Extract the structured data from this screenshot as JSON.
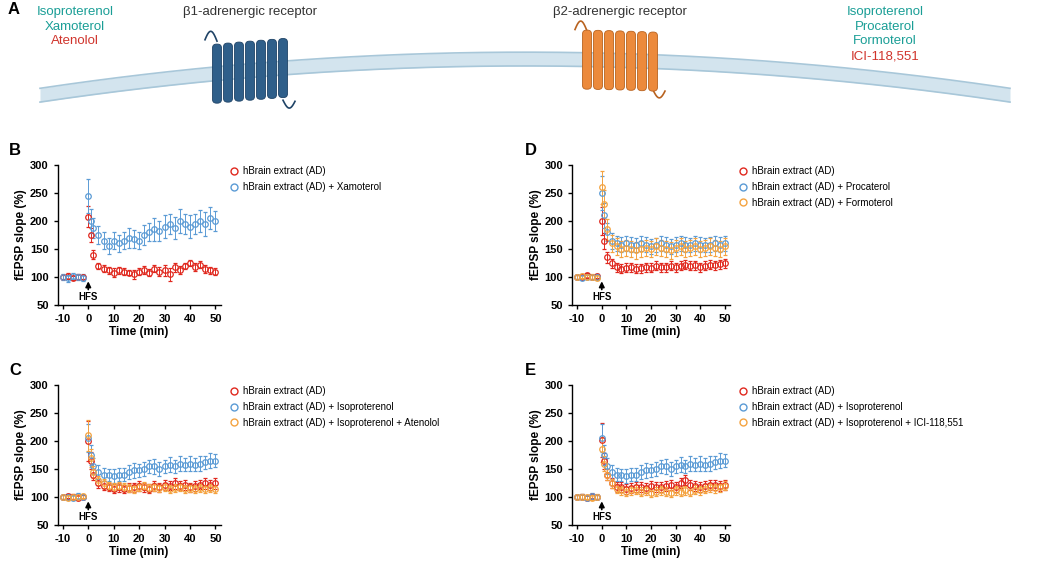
{
  "diagram": {
    "label": "A",
    "receptors": [
      {
        "name": "β1-adrenergic receptor",
        "agonists": [
          "Isoproterenol",
          "Xamoterol"
        ],
        "antagonists": [
          "Atenolol"
        ]
      },
      {
        "name": "β2-adrenergic receptor",
        "agonists": [
          "Isoproterenol",
          "Procaterol",
          "Formoterol"
        ],
        "antagonists": [
          "ICI-118,551"
        ]
      }
    ]
  },
  "chart_data": [
    {
      "type": "scatter",
      "title": "B",
      "xlabel": "Time (min)",
      "ylabel": "fEPSP slope (%)",
      "x": [
        -10,
        -8,
        -6,
        -4,
        -2,
        0,
        1,
        2,
        4,
        6,
        8,
        10,
        12,
        14,
        16,
        18,
        20,
        22,
        24,
        26,
        28,
        30,
        32,
        34,
        36,
        38,
        40,
        42,
        44,
        46,
        48,
        50
      ],
      "xlim": [
        -12,
        52
      ],
      "xticks": [
        -10,
        0,
        10,
        20,
        30,
        40,
        50
      ],
      "ylim": [
        50,
        300
      ],
      "yticks": [
        50,
        100,
        150,
        200,
        250,
        300
      ],
      "grid": false,
      "legend": "upper left",
      "annotations": [
        {
          "text": "HFS",
          "x": 0
        }
      ],
      "series": [
        {
          "name": "hBrain extract (AD)",
          "color": "#e0281e",
          "marker": "circle",
          "line_style": "none",
          "values": [
            100,
            102,
            98,
            101,
            100,
            208,
            175,
            140,
            120,
            115,
            112,
            108,
            112,
            110,
            108,
            105,
            110,
            112,
            108,
            115,
            110,
            112,
            105,
            118,
            112,
            120,
            125,
            118,
            122,
            115,
            112,
            110
          ],
          "errors": [
            4,
            5,
            4,
            5,
            4,
            18,
            12,
            8,
            6,
            6,
            6,
            8,
            6,
            6,
            5,
            8,
            6,
            7,
            6,
            6,
            8,
            10,
            12,
            8,
            7,
            6,
            6,
            7,
            6,
            7,
            6,
            6
          ]
        },
        {
          "name": "hBrain extract (AD) + Xamoterol",
          "color": "#5b9bd5",
          "marker": "circle",
          "line_style": "none",
          "values": [
            100,
            98,
            102,
            100,
            99,
            245,
            200,
            188,
            175,
            165,
            155,
            165,
            160,
            165,
            170,
            168,
            165,
            175,
            180,
            185,
            182,
            190,
            195,
            188,
            200,
            195,
            190,
            195,
            200,
            195,
            205,
            200
          ],
          "errors": [
            5,
            6,
            5,
            5,
            6,
            30,
            22,
            18,
            16,
            15,
            14,
            15,
            16,
            15,
            18,
            16,
            15,
            18,
            16,
            20,
            18,
            20,
            18,
            20,
            22,
            18,
            20,
            18,
            20,
            22,
            20,
            18
          ]
        }
      ]
    },
    {
      "type": "scatter",
      "title": "C",
      "xlabel": "Time (min)",
      "ylabel": "fEPSP slope (%)",
      "x": [
        -10,
        -8,
        -6,
        -4,
        -2,
        0,
        1,
        2,
        4,
        6,
        8,
        10,
        12,
        14,
        16,
        18,
        20,
        22,
        24,
        26,
        28,
        30,
        32,
        34,
        36,
        38,
        40,
        42,
        44,
        46,
        48,
        50
      ],
      "xlim": [
        -12,
        52
      ],
      "xticks": [
        -10,
        0,
        10,
        20,
        30,
        40,
        50
      ],
      "ylim": [
        50,
        300
      ],
      "yticks": [
        50,
        100,
        150,
        200,
        250,
        300
      ],
      "grid": false,
      "legend": "upper left",
      "annotations": [
        {
          "text": "HFS",
          "x": 0
        }
      ],
      "series": [
        {
          "name": "hBrain extract (AD)",
          "color": "#e0281e",
          "marker": "circle",
          "line_style": "none",
          "values": [
            100,
            102,
            101,
            99,
            100,
            200,
            165,
            140,
            125,
            120,
            118,
            115,
            118,
            115,
            117,
            118,
            120,
            118,
            115,
            120,
            118,
            122,
            120,
            125,
            120,
            122,
            118,
            120,
            122,
            125,
            122,
            125
          ],
          "errors": [
            4,
            4,
            5,
            4,
            4,
            35,
            15,
            10,
            8,
            8,
            7,
            8,
            8,
            7,
            8,
            8,
            9,
            8,
            8,
            9,
            8,
            9,
            8,
            10,
            8,
            9,
            8,
            9,
            8,
            10,
            9,
            10
          ]
        },
        {
          "name": "hBrain extract (AD) + Isoproterenol",
          "color": "#5b9bd5",
          "marker": "circle",
          "line_style": "none",
          "values": [
            100,
            101,
            99,
            102,
            100,
            205,
            175,
            155,
            145,
            140,
            140,
            138,
            140,
            140,
            145,
            148,
            148,
            150,
            155,
            155,
            150,
            155,
            158,
            155,
            160,
            158,
            160,
            158,
            160,
            162,
            165,
            165
          ],
          "errors": [
            4,
            5,
            4,
            5,
            4,
            25,
            18,
            14,
            12,
            12,
            11,
            12,
            12,
            12,
            12,
            13,
            12,
            13,
            12,
            13,
            12,
            12,
            13,
            12,
            13,
            12,
            13,
            12,
            13,
            12,
            13,
            12
          ]
        },
        {
          "name": "hBrain extract (AD) + Isoproterenol + Atenolol",
          "color": "#f4a340",
          "marker": "circle",
          "line_style": "none",
          "values": [
            100,
            99,
            101,
            100,
            102,
            210,
            170,
            145,
            130,
            125,
            120,
            118,
            120,
            118,
            117,
            115,
            118,
            120,
            117,
            118,
            116,
            118,
            115,
            117,
            118,
            115,
            117,
            115,
            116,
            114,
            116,
            115
          ],
          "errors": [
            4,
            4,
            4,
            4,
            4,
            28,
            16,
            10,
            8,
            8,
            7,
            7,
            7,
            7,
            7,
            7,
            7,
            7,
            7,
            7,
            7,
            7,
            7,
            7,
            7,
            7,
            7,
            7,
            7,
            7,
            7,
            7
          ]
        }
      ]
    },
    {
      "type": "scatter",
      "title": "D",
      "xlabel": "Time (min)",
      "ylabel": "fEPSP slope (%)",
      "x": [
        -10,
        -8,
        -6,
        -4,
        -2,
        0,
        1,
        2,
        4,
        6,
        8,
        10,
        12,
        14,
        16,
        18,
        20,
        22,
        24,
        26,
        28,
        30,
        32,
        34,
        36,
        38,
        40,
        42,
        44,
        46,
        48,
        50
      ],
      "xlim": [
        -12,
        52
      ],
      "xticks": [
        -10,
        0,
        10,
        20,
        30,
        40,
        50
      ],
      "ylim": [
        50,
        300
      ],
      "yticks": [
        50,
        100,
        150,
        200,
        250,
        300
      ],
      "grid": false,
      "legend": "upper left",
      "annotations": [
        {
          "text": "HFS",
          "x": 0
        }
      ],
      "series": [
        {
          "name": "hBrain extract (AD)",
          "color": "#e0281e",
          "marker": "circle",
          "line_style": "none",
          "values": [
            100,
            101,
            103,
            100,
            102,
            200,
            165,
            135,
            125,
            118,
            115,
            117,
            118,
            115,
            116,
            118,
            117,
            120,
            118,
            118,
            120,
            118,
            120,
            122,
            120,
            121,
            118,
            120,
            122,
            121,
            123,
            125
          ],
          "errors": [
            4,
            4,
            4,
            4,
            4,
            25,
            14,
            10,
            8,
            8,
            8,
            8,
            8,
            8,
            8,
            8,
            8,
            8,
            8,
            8,
            8,
            8,
            8,
            8,
            8,
            8,
            8,
            8,
            8,
            8,
            8,
            8
          ]
        },
        {
          "name": "hBrain extract (AD) + Procaterol",
          "color": "#5b9bd5",
          "marker": "circle",
          "line_style": "none",
          "values": [
            100,
            99,
            101,
            100,
            101,
            250,
            210,
            180,
            165,
            160,
            158,
            160,
            158,
            157,
            160,
            158,
            155,
            157,
            160,
            158,
            155,
            158,
            160,
            158,
            157,
            160,
            158,
            157,
            158,
            160,
            158,
            160
          ],
          "errors": [
            4,
            4,
            4,
            4,
            4,
            30,
            22,
            16,
            14,
            13,
            13,
            13,
            13,
            13,
            13,
            13,
            13,
            13,
            13,
            13,
            13,
            13,
            13,
            13,
            13,
            13,
            13,
            13,
            13,
            13,
            13,
            13
          ]
        },
        {
          "name": "hBrain extract (AD) + Formoterol",
          "color": "#f4a340",
          "marker": "circle",
          "line_style": "none",
          "values": [
            100,
            102,
            100,
            101,
            99,
            260,
            230,
            185,
            160,
            155,
            150,
            152,
            150,
            148,
            150,
            152,
            150,
            155,
            152,
            150,
            148,
            152,
            155,
            150,
            152,
            155,
            150,
            152,
            155,
            152,
            150,
            155
          ],
          "errors": [
            4,
            4,
            4,
            4,
            4,
            30,
            25,
            18,
            15,
            15,
            15,
            15,
            15,
            15,
            15,
            15,
            15,
            15,
            15,
            15,
            15,
            15,
            15,
            15,
            15,
            15,
            15,
            15,
            15,
            15,
            15,
            15
          ]
        }
      ]
    },
    {
      "type": "scatter",
      "title": "E",
      "xlabel": "Time (min)",
      "ylabel": "fEPSP slope (%)",
      "x": [
        -10,
        -8,
        -6,
        -4,
        -2,
        0,
        1,
        2,
        4,
        6,
        8,
        10,
        12,
        14,
        16,
        18,
        20,
        22,
        24,
        26,
        28,
        30,
        32,
        34,
        36,
        38,
        40,
        42,
        44,
        46,
        48,
        50
      ],
      "xlim": [
        -12,
        52
      ],
      "xticks": [
        -10,
        0,
        10,
        20,
        30,
        40,
        50
      ],
      "ylim": [
        50,
        300
      ],
      "yticks": [
        50,
        100,
        150,
        200,
        250,
        300
      ],
      "grid": false,
      "legend": "upper left",
      "annotations": [
        {
          "text": "HFS",
          "x": 0
        }
      ],
      "series": [
        {
          "name": "hBrain extract (AD)",
          "color": "#e0281e",
          "marker": "circle",
          "line_style": "none",
          "values": [
            100,
            101,
            99,
            102,
            100,
            202,
            165,
            140,
            125,
            118,
            118,
            115,
            117,
            118,
            118,
            116,
            120,
            118,
            118,
            120,
            122,
            118,
            125,
            130,
            122,
            120,
            118,
            120,
            122,
            121,
            120,
            122
          ],
          "errors": [
            4,
            4,
            4,
            4,
            4,
            30,
            14,
            10,
            9,
            9,
            9,
            9,
            9,
            9,
            9,
            9,
            9,
            9,
            9,
            9,
            9,
            9,
            9,
            9,
            9,
            9,
            9,
            9,
            9,
            9,
            9,
            9
          ]
        },
        {
          "name": "hBrain extract (AD) + Isoproterenol",
          "color": "#5b9bd5",
          "marker": "circle",
          "line_style": "none",
          "values": [
            100,
            101,
            99,
            102,
            100,
            205,
            175,
            155,
            145,
            140,
            140,
            138,
            140,
            140,
            145,
            148,
            148,
            150,
            155,
            155,
            150,
            155,
            158,
            155,
            160,
            158,
            160,
            158,
            160,
            162,
            165,
            165
          ],
          "errors": [
            4,
            5,
            4,
            5,
            4,
            25,
            18,
            14,
            12,
            12,
            11,
            12,
            12,
            12,
            12,
            13,
            12,
            13,
            12,
            13,
            12,
            12,
            13,
            12,
            13,
            12,
            13,
            12,
            13,
            12,
            13,
            12
          ]
        },
        {
          "name": "hBrain extract (AD) + Isoproterenol + ICI-118,551",
          "color": "#f4a340",
          "marker": "circle",
          "line_style": "none",
          "values": [
            100,
            101,
            100,
            99,
            101,
            185,
            160,
            140,
            125,
            115,
            112,
            110,
            112,
            113,
            110,
            112,
            108,
            110,
            112,
            110,
            108,
            112,
            110,
            112,
            110,
            113,
            112,
            115,
            118,
            116,
            118,
            120
          ],
          "errors": [
            4,
            4,
            4,
            4,
            4,
            22,
            14,
            10,
            8,
            8,
            8,
            8,
            8,
            8,
            8,
            8,
            8,
            8,
            8,
            8,
            8,
            8,
            8,
            8,
            8,
            8,
            8,
            8,
            8,
            8,
            8,
            8
          ]
        }
      ]
    }
  ]
}
